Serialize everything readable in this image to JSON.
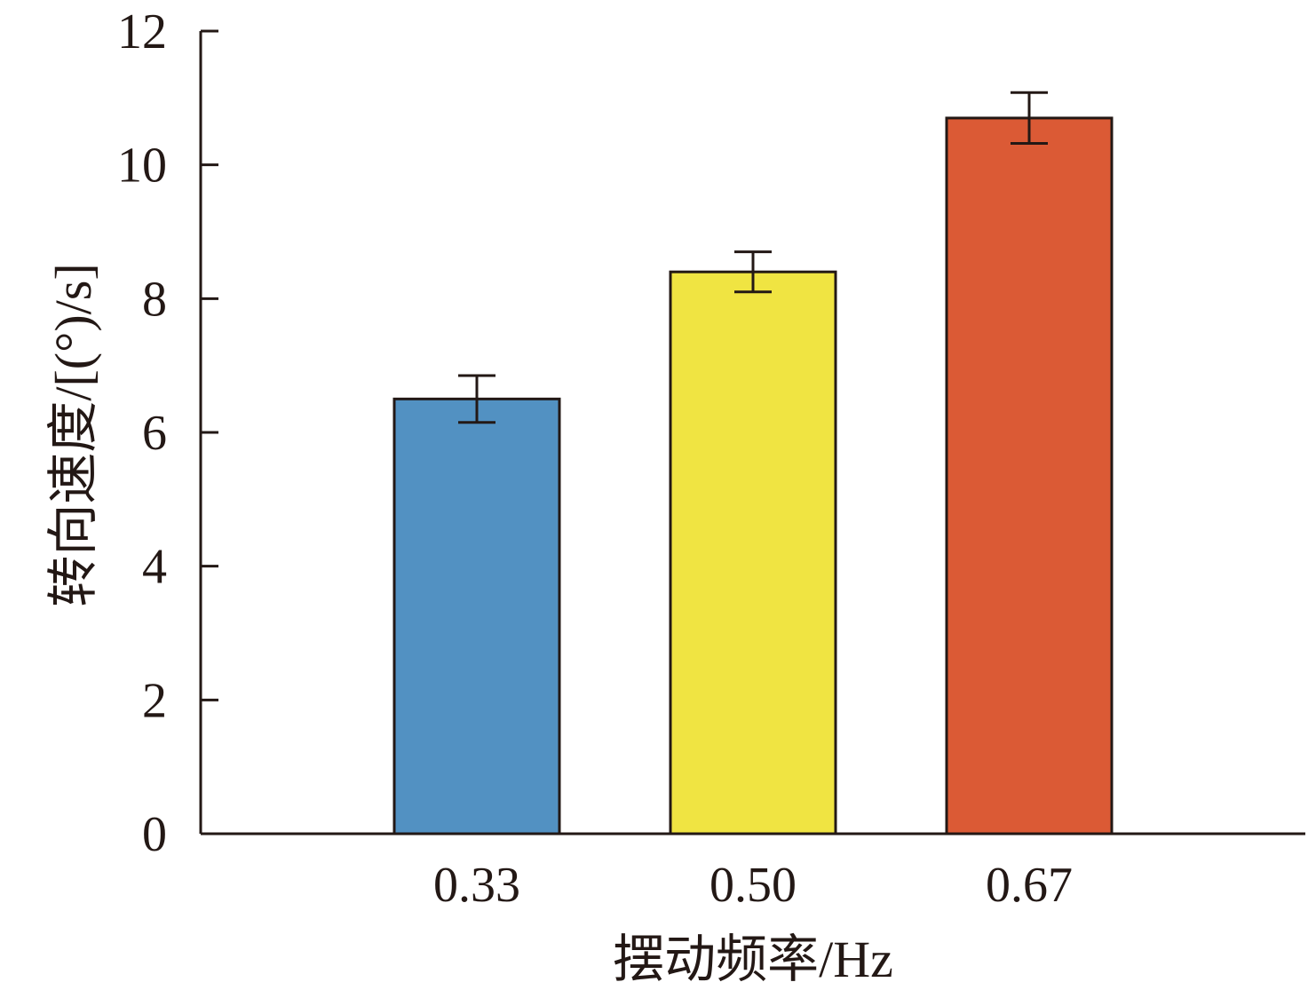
{
  "chart_data": {
    "type": "bar",
    "title": "",
    "xlabel": "摆动频率/Hz",
    "ylabel": "转向速度/[(°)/s]",
    "categories": [
      "0.33",
      "0.50",
      "0.67"
    ],
    "values": [
      6.5,
      8.4,
      10.7
    ],
    "errors": [
      0.35,
      0.3,
      0.38
    ],
    "colors": [
      "#5291c2",
      "#f0e442",
      "#db5a35"
    ],
    "ylim": [
      0,
      12
    ],
    "yticks": [
      0,
      2,
      4,
      6,
      8,
      10,
      12
    ],
    "grid": false,
    "legend": "none"
  }
}
